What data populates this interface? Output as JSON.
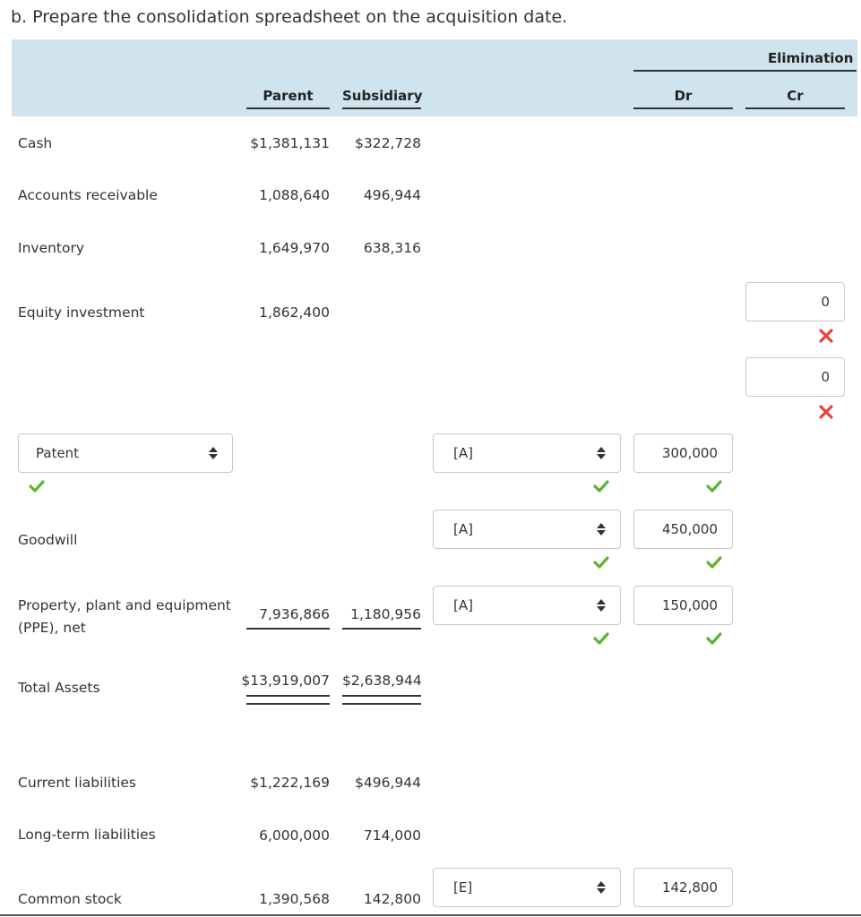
{
  "heading": "b. Prepare the consolidation spreadsheet on the acquisition date.",
  "columns": {
    "parent": "Parent",
    "subsidiary": "Subsidiary",
    "elimination": "Elimination",
    "dr": "Dr",
    "cr": "Cr"
  },
  "rows": {
    "cash": {
      "label": "Cash",
      "parent": "$1,381,131",
      "subsidiary": "$322,728"
    },
    "ar": {
      "label": "Accounts receivable",
      "parent": "1,088,640",
      "subsidiary": "496,944"
    },
    "inventory": {
      "label": "Inventory",
      "parent": "1,649,970",
      "subsidiary": "638,316"
    },
    "equity": {
      "label": "Equity investment",
      "parent": "1,862,400",
      "cr1": "0",
      "cr2": "0"
    },
    "patent": {
      "select": "Patent",
      "code": "[A]",
      "dr": "300,000"
    },
    "goodwill": {
      "label": "Goodwill",
      "code": "[A]",
      "dr": "450,000"
    },
    "ppe": {
      "label_line1": "Property, plant and equipment",
      "label_line2": "(PPE), net",
      "parent": "7,936,866",
      "subsidiary": "1,180,956",
      "code": "[A]",
      "dr": "150,000"
    },
    "total_assets": {
      "label": "Total Assets",
      "parent": "$13,919,007",
      "subsidiary": "$2,638,944"
    },
    "current_liab": {
      "label": "Current liabilities",
      "parent": "$1,222,169",
      "subsidiary": "$496,944"
    },
    "lt_liab": {
      "label": "Long-term liabilities",
      "parent": "6,000,000",
      "subsidiary": "714,000"
    },
    "common_stock": {
      "label": "Common stock",
      "parent": "1,390,568",
      "subsidiary": "142,800",
      "code": "[E]",
      "dr": "142,800"
    }
  },
  "icons": {
    "correct": "check-icon",
    "incorrect": "x-icon",
    "dropdown": "updown-arrows-icon"
  },
  "colors": {
    "header_band": "#cfe4ee",
    "correct": "#5cb531",
    "incorrect": "#e8423c"
  }
}
